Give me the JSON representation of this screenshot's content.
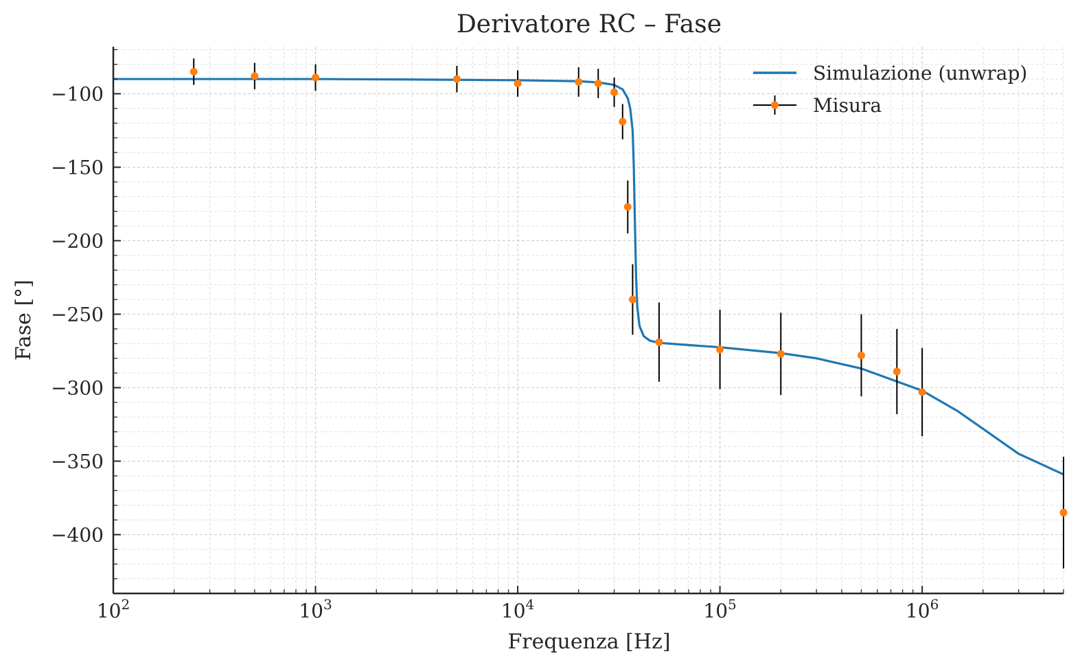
{
  "chart_data": {
    "type": "line",
    "title": "Derivatore RC – Fase",
    "xlabel": "Frequenza [Hz]",
    "ylabel": "Fase [°]",
    "xscale": "log",
    "xlim": [
      100,
      5000000
    ],
    "ylim": [
      -440,
      -68
    ],
    "x_ticks": [
      {
        "value": 100,
        "base": "10",
        "exp": "2"
      },
      {
        "value": 1000,
        "base": "10",
        "exp": "3"
      },
      {
        "value": 10000,
        "base": "10",
        "exp": "4"
      },
      {
        "value": 100000,
        "base": "10",
        "exp": "5"
      },
      {
        "value": 1000000,
        "base": "10",
        "exp": "6"
      }
    ],
    "y_ticks": [
      {
        "value": -100,
        "label": "−100"
      },
      {
        "value": -150,
        "label": "−150"
      },
      {
        "value": -200,
        "label": "−200"
      },
      {
        "value": -250,
        "label": "−250"
      },
      {
        "value": -300,
        "label": "−300"
      },
      {
        "value": -350,
        "label": "−350"
      },
      {
        "value": -400,
        "label": "−400"
      }
    ],
    "grid": true,
    "legend_position": "top-right",
    "series": [
      {
        "name": "Simulazione (unwrap)",
        "kind": "line",
        "color": "#1f77b4",
        "x": [
          100,
          300,
          1000,
          3000,
          10000,
          20000,
          25000,
          30000,
          33000,
          35000,
          36000,
          37000,
          37500,
          38000,
          38500,
          39000,
          40000,
          42000,
          45000,
          50000,
          70000,
          100000,
          200000,
          300000,
          500000,
          1000000,
          1500000,
          2000000,
          3000000,
          5000000
        ],
        "y": [
          -90,
          -90,
          -90,
          -90.3,
          -90.8,
          -91.5,
          -92.3,
          -94,
          -97,
          -103,
          -110,
          -125,
          -150,
          -190,
          -225,
          -245,
          -258,
          -265,
          -268,
          -269.5,
          -271,
          -272.5,
          -276.5,
          -280,
          -287,
          -302,
          -316,
          -328,
          -345,
          -359
        ]
      },
      {
        "name": "Misura",
        "kind": "errorbar",
        "color": "#ff7f0e",
        "error_color": "#000000",
        "x": [
          250,
          500,
          1000,
          5000,
          10000,
          20000,
          25000,
          30000,
          33000,
          35000,
          37000,
          50000,
          100000,
          200000,
          500000,
          750000,
          1000000,
          5000000
        ],
        "y": [
          -85,
          -88,
          -89,
          -90,
          -93,
          -92,
          -93,
          -99,
          -119,
          -177,
          -240,
          -269,
          -274,
          -277,
          -278,
          -289,
          -303,
          -385
        ],
        "yerr": [
          9,
          9,
          9,
          9,
          9,
          10,
          10,
          10,
          12,
          18,
          24,
          27,
          27,
          28,
          28,
          29,
          30,
          38
        ]
      }
    ]
  }
}
